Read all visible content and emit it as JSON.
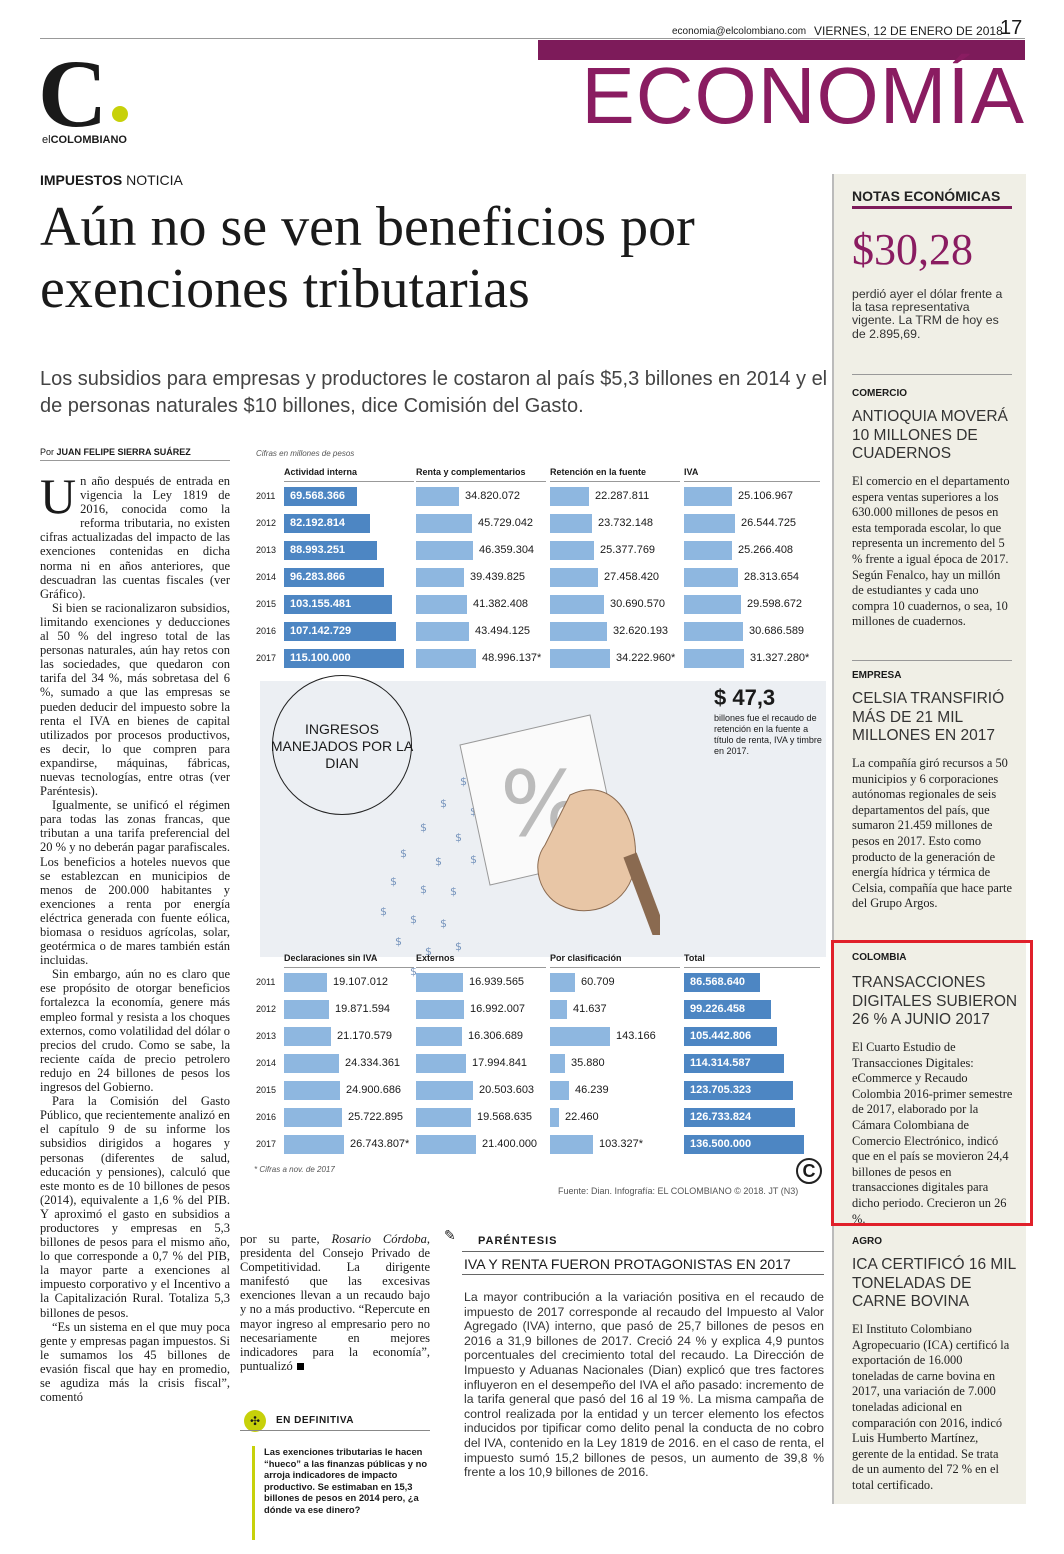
{
  "header": {
    "email": "economia@elcolombiano.com",
    "date": "VIERNES, 12 DE ENERO DE 2018",
    "page_number": "17",
    "section": "ECONOMÍA",
    "logo_letter": "C",
    "logo_name_prefix": "el",
    "logo_name": "COLOMBIANO"
  },
  "article": {
    "kicker_bold": "IMPUESTOS",
    "kicker_rest": "NOTICIA",
    "headline": "Aún no se ven beneficios por exenciones tributarias",
    "deck": "Los subsidios para empresas y productores le costaron al país $5,3 billones en 2014 y el de personas naturales $10 billones, dice Comisión del Gasto.",
    "byline_prefix": "Por",
    "byline_name": "JUAN FELIPE SIERRA SUÁREZ",
    "dropcap": "U",
    "p1": "n año después de entrada en vigencia la Ley 1819 de 2016, conocida como la reforma tributaria, no existen cifras actualizadas del impacto de las exenciones contenidas en dicha norma ni en años anteriores, que descuadran las cuentas fiscales (ver Gráfico).",
    "p2": "Si bien se racionalizaron subsidios, limitando exenciones y deducciones al 50 % del ingreso total de las personas naturales, aún hay retos con las sociedades, que quedaron con tarifa del 34 %, más sobretasa del 6 %, sumado a que las empresas se pueden deducir del impuesto sobre la renta el IVA en bienes de capital utilizados por procesos productivos, es decir, lo que compren para expandirse, máquinas, fábricas, nuevas tecnologías, entre otras (ver Paréntesis).",
    "p3": "Igualmente, se unificó el régimen para todas las zonas francas, que tributan a una tarifa preferencial del 20 % y no deberán pagar parafiscales. Los beneficios a hoteles nuevos que se establezcan en municipios de menos de 200.000 habitantes y exenciones a renta por energía eléctrica generada con fuente eólica, biomasa o residuos agrícolas, solar, geotérmica o de mares también están incluidas.",
    "p4": "Sin embargo, aún no es claro que ese propósito de otorgar beneficios fortalezca la economía, genere más empleo formal y resista a los choques externos, como volatilidad del dólar o precios del crudo. Como se sabe, la reciente caída de precio petrolero redujo en 24 billones de pesos los ingresos del Gobierno.",
    "p5": "Para la Comisión del Gasto Público, que recientemente analizó en el capítulo 9 de su informe los subsidios dirigidos a hogares y personas (diferentes de salud, educación y pensiones), calculó que este monto es de 10 billones de pesos (2014), equivalente a 1,6 % del PIB. Y aproximó el gasto en subsidios a productores y empresas en 5,3 billones de pesos para el mismo año, lo que corresponde a 0,7 % del PIB, la mayor parte a exenciones al impuesto corporativo y el Incentivo a la Capitalización Rural. Totaliza 5,3 billones de pesos.",
    "p6": "“Es un sistema en el que muy poca gente y empresas pagan impuestos. Si le sumamos los 45 billones de evasión fiscal que hay en promedio, se agudiza más la crisis fiscal”, comentó",
    "col2_lead": "por su parte,",
    "col2_name": "Rosario Córdoba",
    "col2_text": ", presidenta del Consejo Privado de Competitividad. La dirigente manifestó que las excesivas exenciones llevan a un recaudo bajo y no a más productivo. “Repercute en mayor ingreso al empresario pero no necesariamente en mejores indicadores para la economía”, puntualizó"
  },
  "infographic": {
    "units_note": "Cifras en millones de pesos",
    "years": [
      "2011",
      "2012",
      "2013",
      "2014",
      "2015",
      "2016",
      "2017"
    ],
    "top_columns": [
      {
        "name": "Actividad interna",
        "values": [
          "69.568.366",
          "82.192.814",
          "88.993.251",
          "96.283.866",
          "103.155.481",
          "107.142.729",
          "115.100.000"
        ]
      },
      {
        "name": "Renta y complementarios",
        "values": [
          "34.820.072",
          "45.729.042",
          "46.359.304",
          "39.439.825",
          "41.382.408",
          "43.494.125",
          "48.996.137*"
        ]
      },
      {
        "name": "Retención en la fuente",
        "values": [
          "22.287.811",
          "23.732.148",
          "25.377.769",
          "27.458.420",
          "30.690.570",
          "32.620.193",
          "34.222.960*"
        ]
      },
      {
        "name": "IVA",
        "values": [
          "25.106.967",
          "26.544.725",
          "25.266.408",
          "28.313.654",
          "29.598.672",
          "30.686.589",
          "31.327.280*"
        ]
      }
    ],
    "bottom_columns": [
      {
        "name": "Declaraciones sin IVA",
        "values": [
          "19.107.012",
          "19.871.594",
          "21.170.579",
          "24.334.361",
          "24.900.686",
          "25.722.895",
          "26.743.807*"
        ]
      },
      {
        "name": "Externos",
        "values": [
          "16.939.565",
          "16.992.007",
          "16.306.689",
          "17.994.841",
          "20.503.603",
          "19.568.635",
          "21.400.000"
        ]
      },
      {
        "name": "Por clasificación",
        "values": [
          "60.709",
          "41.637",
          "143.166",
          "35.880",
          "46.239",
          "22.460",
          "103.327*"
        ]
      },
      {
        "name": "Total",
        "values": [
          "86.568.640",
          "99.226.458",
          "105.442.806",
          "114.314.587",
          "123.705.323",
          "126.733.824",
          "136.500.000"
        ]
      }
    ],
    "circle_text": "INGRESOS MANEJADOS POR LA DIAN",
    "big_number": "$ 47,3",
    "big_number_text": "billones fue el recaudo de retención en la fuente a título de renta, IVA y timbre en 2017.",
    "footnote": "* Cifras a nov. de 2017",
    "source": "Fuente: Dian. Infografía: EL COLOMBIANO © 2018. JT (N3)",
    "card_symbol": "%",
    "logo_letter": "C"
  },
  "parentesis": {
    "label": "PARÉNTESIS",
    "title": "IVA Y RENTA FUERON PROTAGONISTAS EN 2017",
    "body": "La mayor contribución a la variación positiva en el recaudo de impuesto de 2017 corresponde al recaudo del Impuesto al Valor Agregado (IVA) interno, que pasó de 25,7 billones de pesos en 2016 a 31,9 billones de 2017. Creció 24 % y explica 4,9 puntos porcentuales del crecimiento total del recaudo. La Dirección de Impuesto y Aduanas Nacionales (Dian) explicó que tres factores influyeron en el desempeño del IVA el año pasado: incremento de la tarifa general que pasó del 16 al 19 %. La misma campaña de control realizada por la entidad y un tercer elemento los efectos inducidos por tipificar como delito penal la conducta de no cobro del IVA, contenido en la Ley 1819 de 2016. en el caso de renta, el impuesto sumó 15,2 billones de pesos, un aumento de 39,8 % frente a los 10,9 billones de 2016."
  },
  "en_definitiva": {
    "label": "EN DEFINITIVA",
    "body": "Las exenciones tributarias le hacen “hueco” a las finanzas públicas y no arroja indicadores de impacto productivo. Se estimaban en 15,3 billones de pesos en 2014 pero, ¿a dónde va ese dinero?"
  },
  "sidebar": {
    "title": "NOTAS ECONÓMICAS",
    "big_number": "$30,28",
    "big_text": "perdió ayer el dólar frente a la tasa representativa vigente. La TRM de hoy es de 2.895,69.",
    "items": [
      {
        "label": "COMERCIO",
        "title": "ANTIOQUIA MOVERÁ 10 MILLONES DE CUADERNOS",
        "body": "El comercio en el departamento espera ventas superiores a los 630.000 millones de pesos en esta temporada escolar, lo que representa un incremento del 5 % frente a igual época de 2017. Según Fenalco, hay un millón de estudiantes y cada uno compra 10 cuadernos, o sea, 10 millones de cuadernos."
      },
      {
        "label": "EMPRESA",
        "title": "CELSIA TRANSFIRIÓ MÁS DE  21 MIL MILLONES EN 2017",
        "body": "La compañía giró recursos a 50 municipios y 6 corporaciones autónomas regionales de seis departamentos del país, que sumaron 21.459 millones de pesos en 2017. Esto como producto de la generación de energía hídrica y térmica de Celsia, compañía que hace parte del Grupo Argos."
      },
      {
        "label": "COLOMBIA",
        "title": "TRANSACCIONES DIGITALES SUBIERON 26 % A JUNIO 2017",
        "body": "El Cuarto Estudio de Transacciones Digitales: eCommerce y Recaudo Colombia 2016-primer semestre de 2017, elaborado por la Cámara Colombiana de Comercio Electrónico, indicó que en el país se movieron 24,4 billones de pesos en transacciones digitales para dicho periodo. Crecieron un 26 %."
      },
      {
        "label": "AGRO",
        "title": "ICA CERTIFICÓ 16 MIL TONELADAS DE CARNE BOVINA",
        "body": "El Instituto Colombiano Agropecuario (ICA) certificó la exportación de 16.000 toneladas de carne bovina en 2017, una variación de 7.000 toneladas adicional en comparación con 2016, indicó Luis Humberto Martínez, gerente de la entidad. Se trata de un aumento del 72 % en el total certificado."
      }
    ]
  },
  "colors": {
    "section": "#8a1c61",
    "accent_bar": "#7d1b5a",
    "logo_dot": "#c7d10a",
    "highlight": "#e0202a",
    "bar_light": "#8eb7e0",
    "bar_dark": "#4d86c3"
  }
}
